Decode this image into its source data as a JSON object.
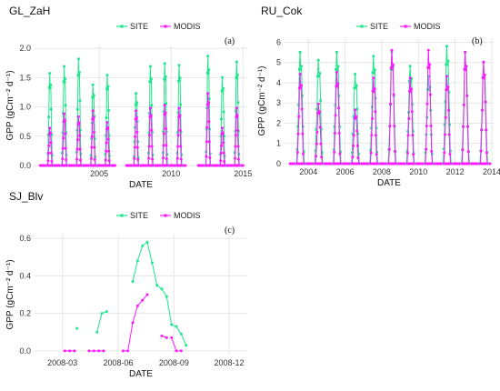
{
  "colors": {
    "site": "#1ee68a",
    "modis": "#ff19ff",
    "grid": "#e6e6e6"
  },
  "chart_data": [
    {
      "id": "a",
      "type": "line",
      "title": "GL_ZaH",
      "panel_label": "(a)",
      "xlabel": "DATE",
      "ylabel": "GPP (gCm⁻² d⁻¹)",
      "x_type": "year",
      "xlim": [
        2000.5,
        2015.3
      ],
      "ylim": [
        0,
        2.05
      ],
      "xticks": [
        2005,
        2010,
        2015
      ],
      "yticks": [
        0.0,
        0.5,
        1.0,
        1.5,
        2.0
      ],
      "ytick_labels": [
        "0.0",
        "0.5",
        "1.0",
        "1.5",
        "2.0"
      ],
      "legend": [
        "SITE",
        "MODIS"
      ],
      "series": [
        {
          "name": "SITE",
          "seasons": [
            {
              "start": 2001.4,
              "end": 2001.75,
              "peak": 1.6
            },
            {
              "start": 2002.4,
              "end": 2002.75,
              "peak": 1.72
            },
            {
              "start": 2003.4,
              "end": 2003.75,
              "peak": 1.85
            },
            {
              "start": 2004.4,
              "end": 2004.75,
              "peak": 1.4
            },
            {
              "start": 2005.4,
              "end": 2005.75,
              "peak": 1.57
            },
            {
              "start": 2007.4,
              "end": 2007.75,
              "peak": 1.25
            },
            {
              "start": 2008.4,
              "end": 2008.75,
              "peak": 1.72
            },
            {
              "start": 2009.4,
              "end": 2009.75,
              "peak": 1.77
            },
            {
              "start": 2010.4,
              "end": 2010.75,
              "peak": 1.74
            },
            {
              "start": 2012.4,
              "end": 2012.75,
              "peak": 1.9
            },
            {
              "start": 2013.4,
              "end": 2013.75,
              "peak": 1.53
            },
            {
              "start": 2014.4,
              "end": 2014.75,
              "peak": 1.8
            }
          ]
        },
        {
          "name": "MODIS",
          "seasons": [
            {
              "start": 2001.42,
              "end": 2001.72,
              "peak": 0.65
            },
            {
              "start": 2002.42,
              "end": 2002.72,
              "peak": 0.9
            },
            {
              "start": 2003.42,
              "end": 2003.72,
              "peak": 0.85
            },
            {
              "start": 2004.42,
              "end": 2004.72,
              "peak": 0.95
            },
            {
              "start": 2005.42,
              "end": 2005.72,
              "peak": 0.75
            },
            {
              "start": 2007.42,
              "end": 2007.72,
              "peak": 0.95
            },
            {
              "start": 2008.42,
              "end": 2008.72,
              "peak": 1.0
            },
            {
              "start": 2009.42,
              "end": 2009.72,
              "peak": 1.05
            },
            {
              "start": 2010.42,
              "end": 2010.72,
              "peak": 1.0
            },
            {
              "start": 2012.42,
              "end": 2012.72,
              "peak": 1.25
            },
            {
              "start": 2013.42,
              "end": 2013.72,
              "peak": 0.65
            },
            {
              "start": 2014.42,
              "end": 2014.72,
              "peak": 1.0
            }
          ]
        }
      ],
      "zero_segments": [
        [
          2000.9,
          2006.1
        ],
        [
          2006.9,
          2011.0
        ],
        [
          2011.9,
          2015.0
        ]
      ]
    },
    {
      "id": "b",
      "type": "line",
      "title": "RU_Cok",
      "panel_label": "(b)",
      "xlabel": "DATE",
      "ylabel": "GPP (gCm⁻² d⁻¹)",
      "x_type": "year",
      "xlim": [
        2002.7,
        2014.1
      ],
      "ylim": [
        0,
        6.2
      ],
      "xticks": [
        2004,
        2006,
        2008,
        2010,
        2012,
        2014
      ],
      "yticks": [
        0,
        1,
        2,
        3,
        4,
        5,
        6
      ],
      "ytick_labels": [
        "0",
        "1",
        "2",
        "3",
        "4",
        "5",
        "6"
      ],
      "legend": [
        "SITE",
        "MODIS"
      ],
      "series": [
        {
          "name": "SITE",
          "seasons": [
            {
              "start": 2003.35,
              "end": 2003.78,
              "peak": 5.6
            },
            {
              "start": 2004.35,
              "end": 2004.78,
              "peak": 5.2
            },
            {
              "start": 2005.35,
              "end": 2005.78,
              "peak": 5.6
            },
            {
              "start": 2006.35,
              "end": 2006.78,
              "peak": 4.5
            },
            {
              "start": 2007.35,
              "end": 2007.78,
              "peak": 5.4
            },
            {
              "start": 2008.35,
              "end": 2008.78,
              "peak": 5.6
            },
            {
              "start": 2009.35,
              "end": 2009.78,
              "peak": 4.9
            },
            {
              "start": 2010.35,
              "end": 2010.78,
              "peak": 4.4
            },
            {
              "start": 2011.35,
              "end": 2011.78,
              "peak": 5.9
            },
            {
              "start": 2012.35,
              "end": 2012.78,
              "peak": 5.6
            },
            {
              "start": 2013.35,
              "end": 2013.78,
              "peak": 5.1
            }
          ]
        },
        {
          "name": "MODIS",
          "seasons": [
            {
              "start": 2003.38,
              "end": 2003.75,
              "peak": 4.5
            },
            {
              "start": 2004.38,
              "end": 2004.75,
              "peak": 3.0
            },
            {
              "start": 2005.38,
              "end": 2005.75,
              "peak": 4.6
            },
            {
              "start": 2006.38,
              "end": 2006.75,
              "peak": 2.7
            },
            {
              "start": 2007.38,
              "end": 2007.75,
              "peak": 4.3
            },
            {
              "start": 2008.38,
              "end": 2008.75,
              "peak": 5.7
            },
            {
              "start": 2009.38,
              "end": 2009.75,
              "peak": 4.3
            },
            {
              "start": 2010.38,
              "end": 2010.75,
              "peak": 5.7
            },
            {
              "start": 2011.38,
              "end": 2011.75,
              "peak": 4.4
            },
            {
              "start": 2012.38,
              "end": 2012.75,
              "peak": 5.6
            },
            {
              "start": 2013.38,
              "end": 2013.75,
              "peak": 5.1
            }
          ]
        }
      ],
      "zero_segments": [
        [
          2003.0,
          2013.9
        ]
      ]
    },
    {
      "id": "c",
      "type": "line",
      "title": "SJ_Blv",
      "panel_label": "(c)",
      "xlabel": "DATE",
      "ylabel": "GPP (gCm⁻² d⁻¹)",
      "x_type": "date",
      "xlim": [
        "2008-01-15",
        "2008-12-31"
      ],
      "ylim": [
        -0.02,
        0.62
      ],
      "xticks": [
        "2008-03-01",
        "2008-06-01",
        "2008-09-01",
        "2008-12-01"
      ],
      "xtick_labels": [
        "2008-03",
        "2008-06",
        "2008-09",
        "2008-12"
      ],
      "yticks": [
        0.0,
        0.2,
        0.4,
        0.6
      ],
      "ytick_labels": [
        "0.0",
        "0.2",
        "0.4",
        "0.6"
      ],
      "legend": [
        "SITE",
        "MODIS"
      ],
      "series": [
        {
          "name": "SITE",
          "segments": [
            [
              [
                "2008-03-25",
                0.12
              ]
            ],
            [
              [
                "2008-04-27",
                0.1
              ],
              [
                "2008-05-05",
                0.2
              ],
              [
                "2008-05-13",
                0.21
              ]
            ],
            [
              [
                "2008-06-25",
                0.37
              ],
              [
                "2008-07-03",
                0.48
              ],
              [
                "2008-07-11",
                0.56
              ],
              [
                "2008-07-19",
                0.58
              ],
              [
                "2008-07-27",
                0.47
              ],
              [
                "2008-08-04",
                0.35
              ],
              [
                "2008-08-12",
                0.33
              ],
              [
                "2008-08-20",
                0.29
              ],
              [
                "2008-08-28",
                0.14
              ],
              [
                "2008-09-05",
                0.13
              ],
              [
                "2008-09-13",
                0.09
              ],
              [
                "2008-09-21",
                0.03
              ]
            ]
          ]
        },
        {
          "name": "MODIS",
          "segments": [
            [
              [
                "2008-03-05",
                0.0
              ],
              [
                "2008-03-13",
                0.0
              ],
              [
                "2008-03-21",
                0.0
              ]
            ],
            [
              [
                "2008-04-14",
                0.0
              ],
              [
                "2008-04-22",
                0.0
              ],
              [
                "2008-04-30",
                0.0
              ],
              [
                "2008-05-08",
                0.0
              ]
            ],
            [
              [
                "2008-06-09",
                0.0
              ],
              [
                "2008-06-17",
                0.0
              ],
              [
                "2008-06-25",
                0.15
              ],
              [
                "2008-07-03",
                0.24
              ],
              [
                "2008-07-11",
                0.27
              ],
              [
                "2008-07-19",
                0.3
              ]
            ],
            [
              [
                "2008-08-12",
                0.08
              ],
              [
                "2008-08-20",
                0.07
              ]
            ],
            [
              [
                "2008-08-28",
                0.07
              ],
              [
                "2008-09-05",
                0.0
              ],
              [
                "2008-09-13",
                0.0
              ]
            ]
          ]
        }
      ]
    }
  ]
}
